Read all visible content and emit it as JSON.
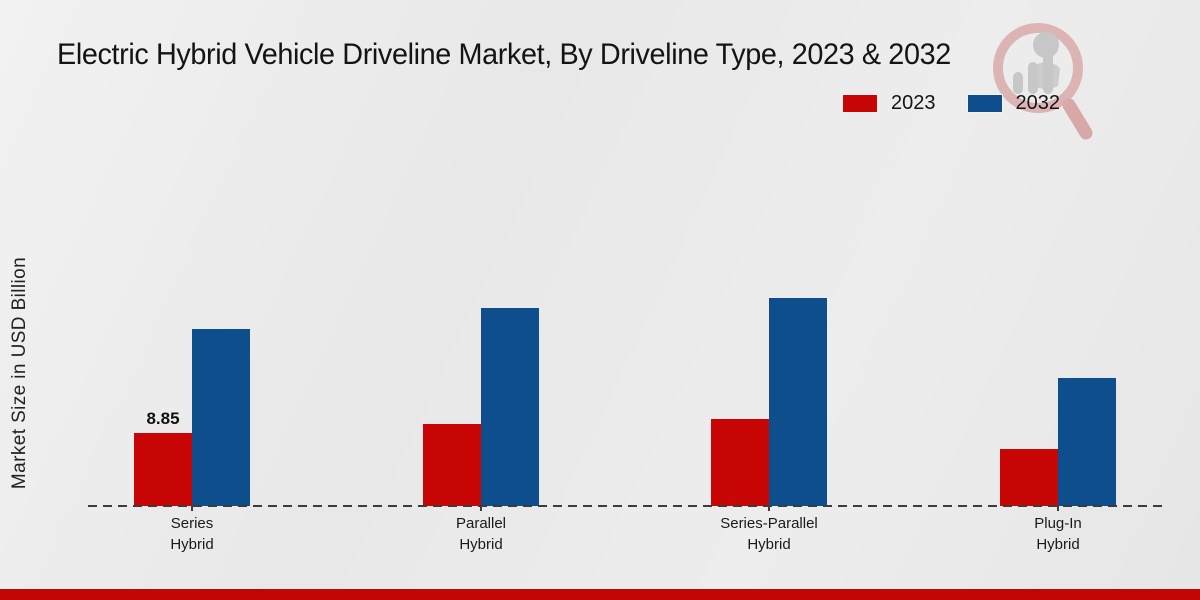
{
  "title": "Electric Hybrid Vehicle Driveline Market, By Driveline Type, 2023 & 2032",
  "y_axis_label": "Market Size in USD Billion",
  "legend": {
    "items": [
      {
        "label": "2023",
        "color": "#c90606"
      },
      {
        "label": "2032",
        "color": "#0f4e8d"
      }
    ]
  },
  "colors": {
    "series_2023": "#c90606",
    "series_2032": "#0f4e8d",
    "bottom_accent_bar": "#c10606",
    "axis_line": "#3c3c3c",
    "background": "#e9e9e9",
    "watermark_ring": "#dcb4b4",
    "watermark_gray": "#c7c7c7"
  },
  "watermark": {
    "icon": "magnifier-analytics-logo"
  },
  "chart_data": {
    "type": "bar",
    "title": "Electric Hybrid Vehicle Driveline Market, By Driveline Type, 2023 & 2032",
    "categories": [
      "Series Hybrid",
      "Parallel Hybrid",
      "Series-Parallel Hybrid",
      "Plug-In Hybrid"
    ],
    "category_label_lines": [
      [
        "Series",
        "Hybrid"
      ],
      [
        "Parallel",
        "Hybrid"
      ],
      [
        "Series-Parallel",
        "Hybrid"
      ],
      [
        "Plug-In",
        "Hybrid"
      ]
    ],
    "series": [
      {
        "name": "2023",
        "color": "#c90606",
        "values": [
          8.85,
          9.9,
          10.5,
          6.9
        ]
      },
      {
        "name": "2032",
        "color": "#0f4e8d",
        "values": [
          21.4,
          24.0,
          25.2,
          15.5
        ]
      }
    ],
    "data_labels": [
      {
        "series_index": 0,
        "category_index": 0,
        "text": "8.85"
      }
    ],
    "xlabel": "",
    "ylabel": "Market Size in USD Billion",
    "ylim": [
      0,
      30
    ],
    "grid": false,
    "legend_position": "top-right",
    "x_axis_style": "dashed",
    "y_axis_ticks_visible": false
  }
}
